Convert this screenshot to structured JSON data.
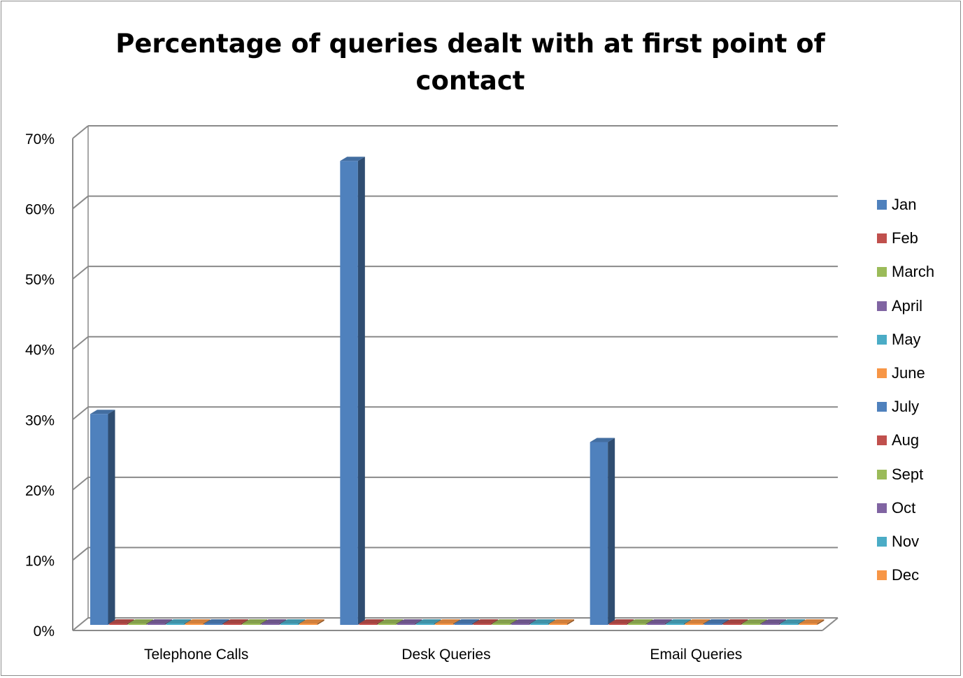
{
  "chart_data": {
    "type": "bar",
    "title": "Percentage of queries dealt with at first point of contact",
    "title_lines": [
      "Percentage of queries dealt with at first point of",
      "contact"
    ],
    "categories": [
      "Telephone Calls",
      "Desk Queries",
      "Email Queries"
    ],
    "ylim": [
      0,
      70
    ],
    "yticks": [
      "0%",
      "10%",
      "20%",
      "30%",
      "40%",
      "50%",
      "60%",
      "70%"
    ],
    "ytick_values": [
      0,
      10,
      20,
      30,
      40,
      50,
      60,
      70
    ],
    "grid": true,
    "legend_position": "right",
    "three_d": true,
    "series": [
      {
        "name": "Jan",
        "color": "#4f81bd",
        "values": [
          30,
          66,
          26
        ]
      },
      {
        "name": "Feb",
        "color": "#c0504d",
        "values": [
          0,
          0,
          0
        ]
      },
      {
        "name": "March",
        "color": "#9bbb59",
        "values": [
          0,
          0,
          0
        ]
      },
      {
        "name": "April",
        "color": "#8064a2",
        "values": [
          0,
          0,
          0
        ]
      },
      {
        "name": "May",
        "color": "#4bacc6",
        "values": [
          0,
          0,
          0
        ]
      },
      {
        "name": "June",
        "color": "#f79646",
        "values": [
          0,
          0,
          0
        ]
      },
      {
        "name": "July",
        "color": "#4f81bd",
        "values": [
          0,
          0,
          0
        ]
      },
      {
        "name": "Aug",
        "color": "#c0504d",
        "values": [
          0,
          0,
          0
        ]
      },
      {
        "name": "Sept",
        "color": "#9bbb59",
        "values": [
          0,
          0,
          0
        ]
      },
      {
        "name": "Oct",
        "color": "#8064a2",
        "values": [
          0,
          0,
          0
        ]
      },
      {
        "name": "Nov",
        "color": "#4bacc6",
        "values": [
          0,
          0,
          0
        ]
      },
      {
        "name": "Dec",
        "color": "#f79646",
        "values": [
          0,
          0,
          0
        ]
      }
    ]
  }
}
